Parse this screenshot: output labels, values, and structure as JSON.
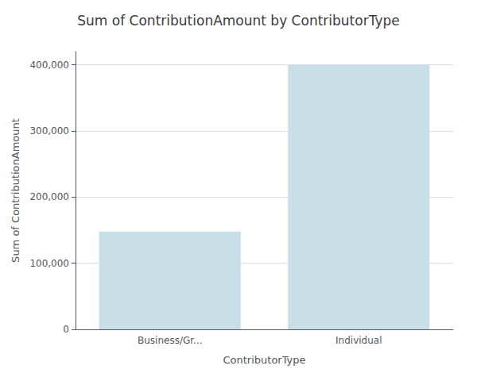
{
  "chart_data": {
    "type": "bar",
    "title": "Sum of ContributionAmount by ContributorType",
    "xlabel": "ContributorType",
    "ylabel": "Sum of ContributionAmount",
    "categories": [
      "Business/Gr...",
      "Individual"
    ],
    "values": [
      148000,
      400000
    ],
    "color": "#c8dfe8",
    "ylim": [
      0,
      420000
    ],
    "yticks": [
      0,
      {
        "value": 100000,
        "label": "100,000"
      },
      {
        "value": 200000,
        "label": "200,000"
      },
      {
        "value": 300000,
        "label": "300,000"
      },
      {
        "value": 400000,
        "label": "400,000"
      }
    ],
    "grid": true
  }
}
